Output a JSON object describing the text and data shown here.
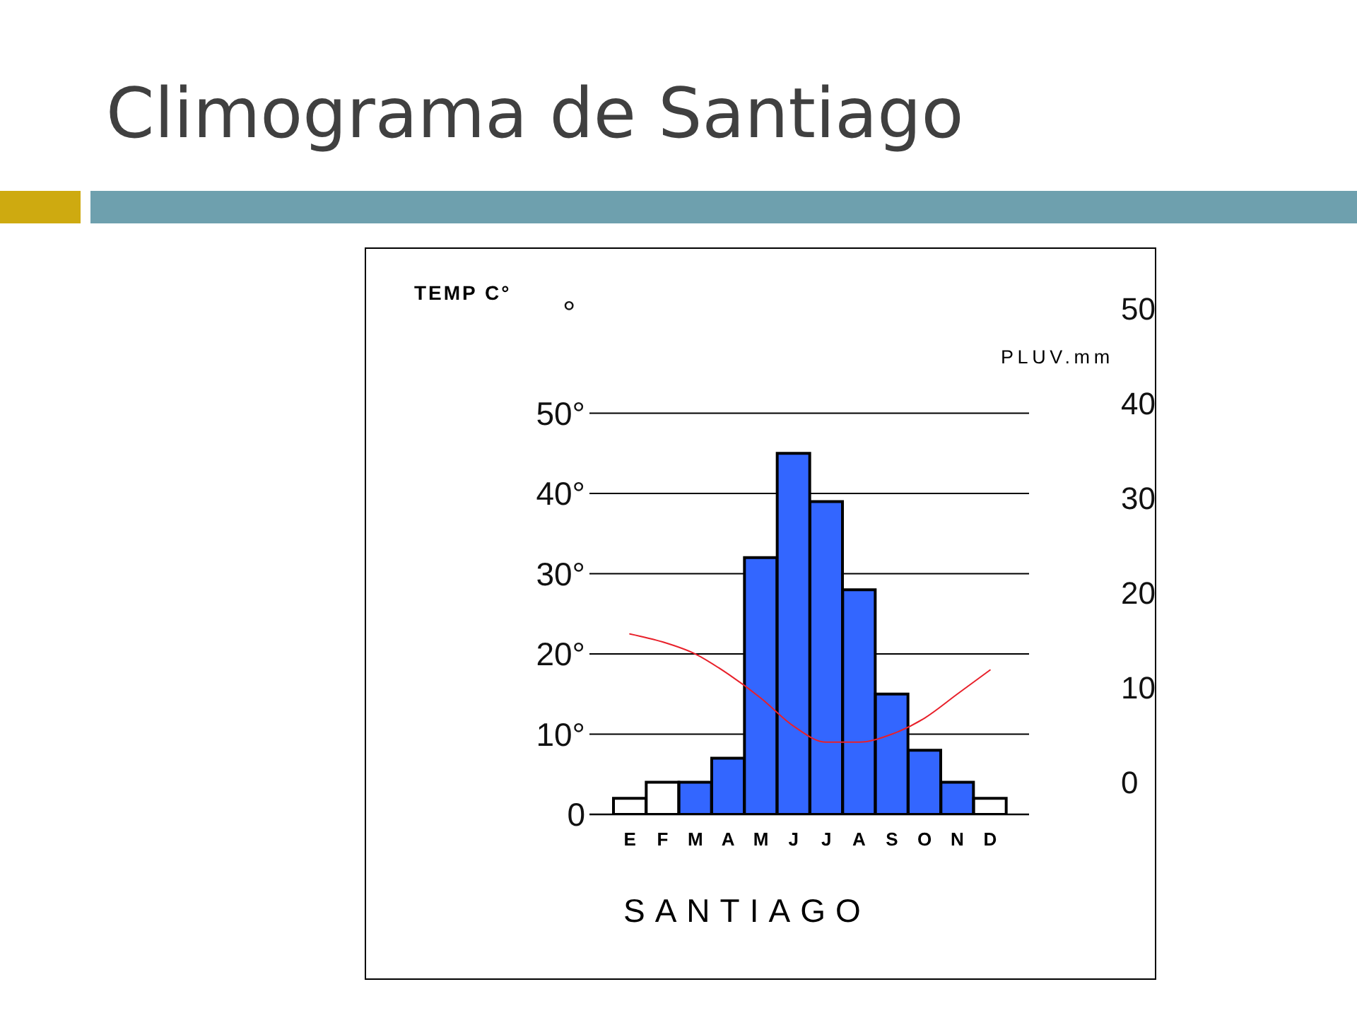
{
  "chart_data": {
    "type": "bar",
    "title": "Climograma de Santiago",
    "xlabel": "SANTIAGO",
    "ylabel": "TEMP C°",
    "y2label": "PLUV.mm",
    "categories": [
      "E",
      "F",
      "M",
      "A",
      "M",
      "J",
      "J",
      "A",
      "S",
      "O",
      "N",
      "D"
    ],
    "series": [
      {
        "colors": [
          "#ffffff",
          "#ffffff",
          "#3366ff",
          "#3366ff",
          "#3366ff",
          "#3366ff",
          "#3366ff",
          "#3366ff",
          "#3366ff",
          "#3366ff",
          "#3366ff",
          "#ffffff"
        ],
        "values": [
          2,
          4,
          4,
          7,
          32,
          45,
          39,
          28,
          15,
          8,
          4,
          2
        ]
      },
      {
        "type": "line",
        "color": "#e8202a",
        "values": [
          22.5,
          21.5,
          20,
          17.5,
          14.5,
          11,
          9,
          9,
          10,
          12,
          15,
          18
        ]
      }
    ],
    "ylim": [
      0,
      50
    ],
    "yticks": [
      0,
      {
        "value": 10,
        "label": "10°"
      },
      {
        "value": 20,
        "label": "20°"
      },
      {
        "value": 30,
        "label": "30°"
      },
      {
        "value": 40,
        "label": "40°"
      },
      {
        "value": 50,
        "label": "50°"
      }
    ],
    "y2lim": [
      0,
      50
    ],
    "y2ticks": [
      0,
      10,
      20,
      30,
      40,
      50
    ],
    "grid": "y",
    "marker": "none",
    "line_style": "solid",
    "annotations": [
      "°"
    ]
  }
}
